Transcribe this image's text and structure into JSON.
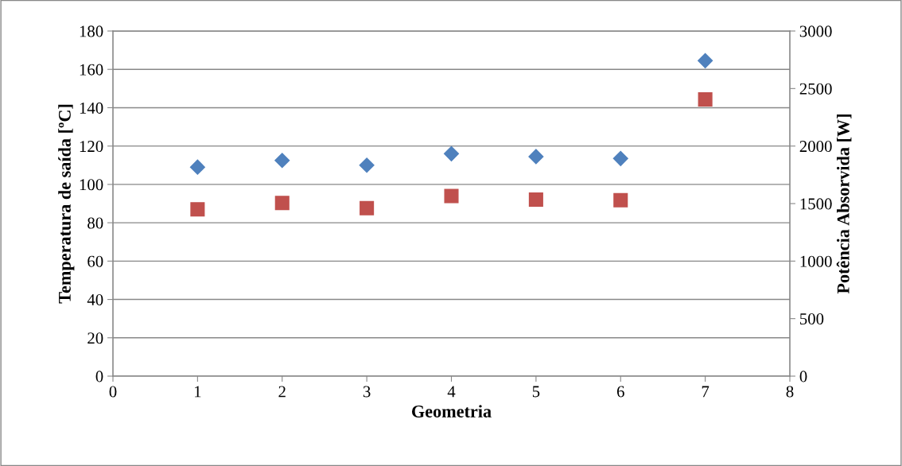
{
  "chart_data": {
    "type": "scatter",
    "xlabel": "Geometria",
    "ylabel": "Temperatura de saída [ºC]",
    "y2label": "Potência Absorvida [W]",
    "x": [
      1,
      2,
      3,
      4,
      5,
      6,
      7
    ],
    "series": [
      {
        "color": "#4f81bd",
        "marker": "diamond",
        "values": [
          109,
          112.5,
          110,
          116,
          114.5,
          113.5,
          164.5
        ]
      },
      {
        "color": "#c0504d",
        "marker": "square",
        "axis": "y2",
        "values": [
          1450,
          1505,
          1460,
          1565,
          1535,
          1530,
          2405
        ]
      }
    ],
    "xlim": [
      0,
      8
    ],
    "xticks": [
      0,
      1,
      2,
      3,
      4,
      5,
      6,
      7,
      8
    ],
    "ylim": [
      0,
      180
    ],
    "yticks": [
      0,
      20,
      40,
      60,
      80,
      100,
      120,
      140,
      160,
      180
    ],
    "y2lim": [
      0,
      3000
    ],
    "y2ticks": [
      0,
      500,
      1000,
      1500,
      2000,
      2500,
      3000
    ],
    "grid": "y",
    "legend": false
  }
}
